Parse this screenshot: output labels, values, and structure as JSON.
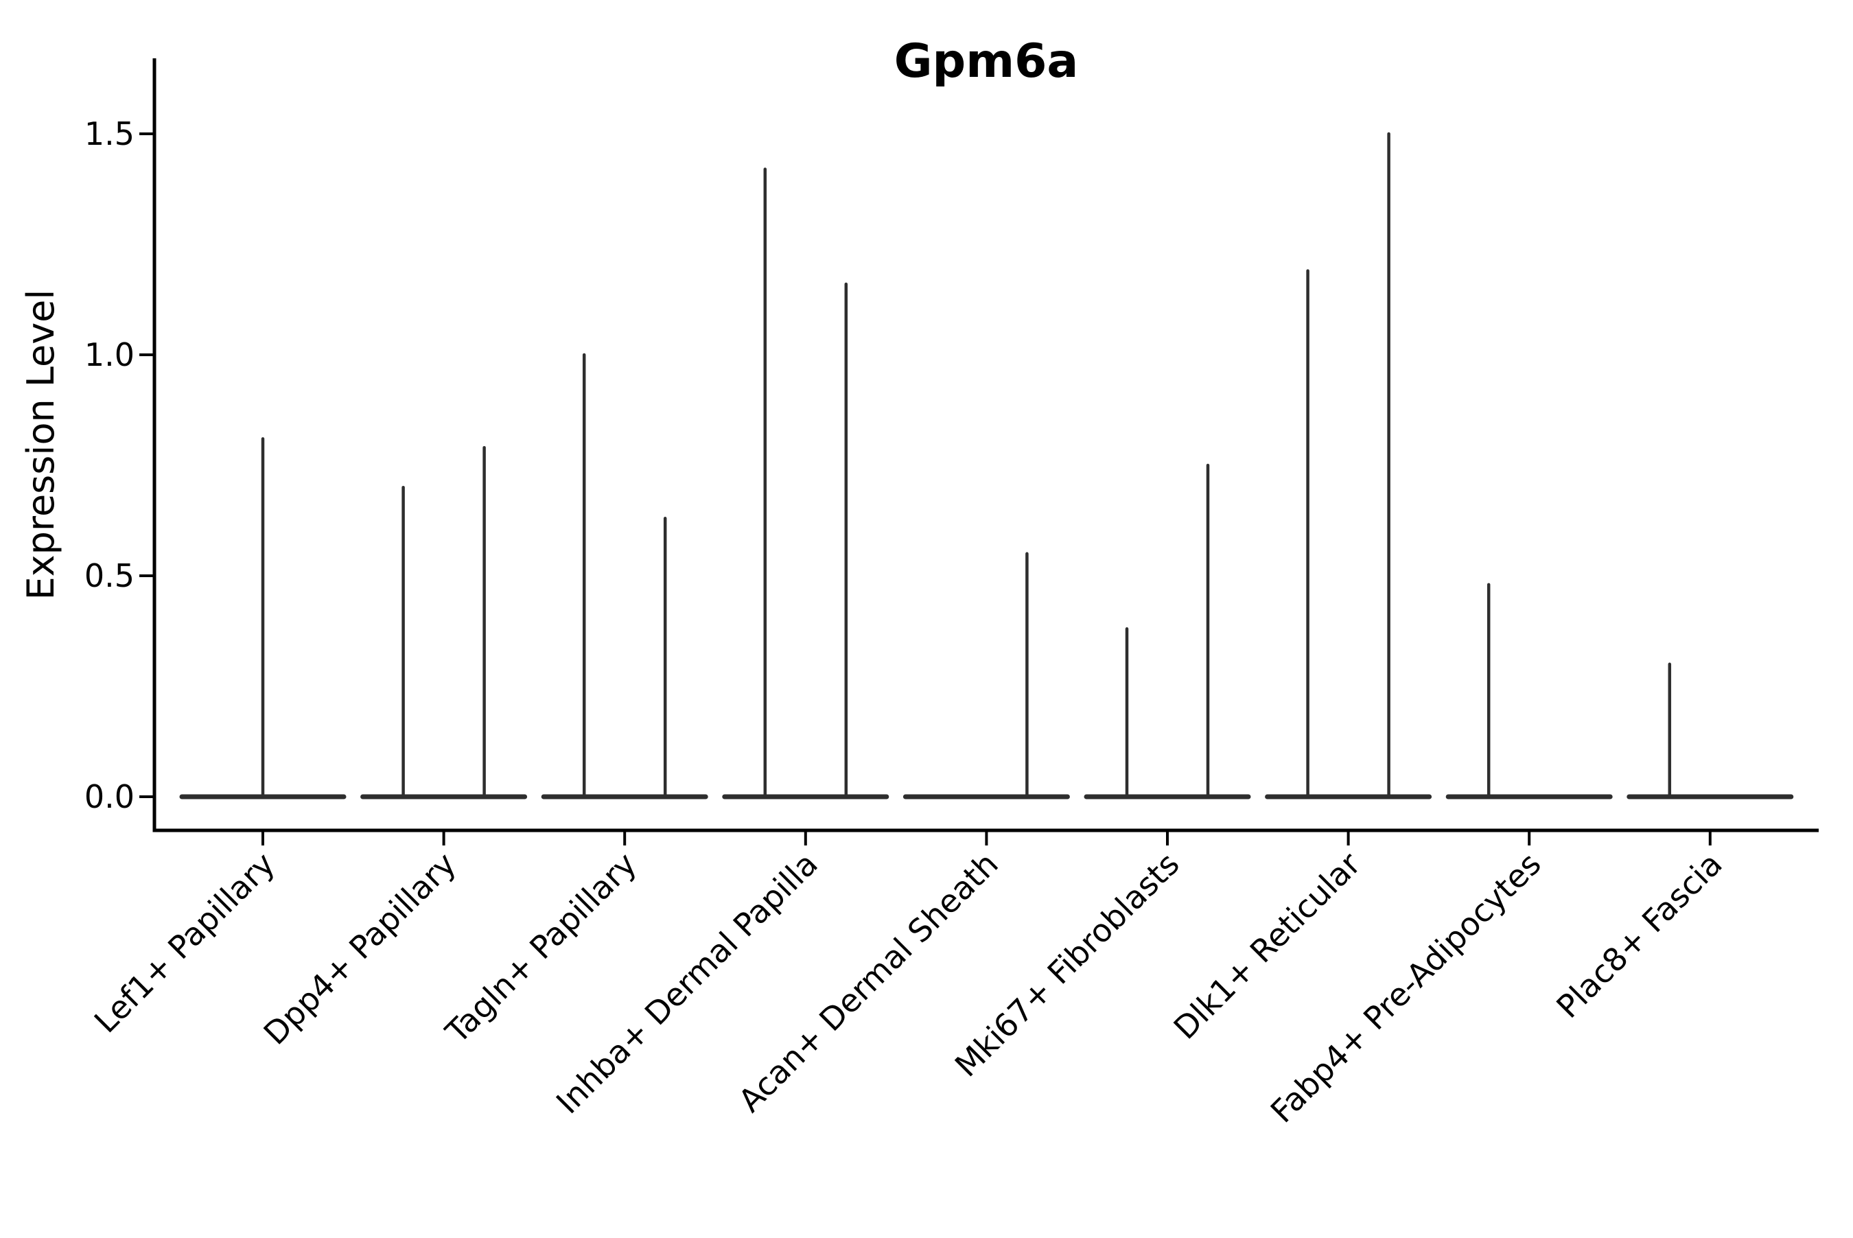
{
  "chart_data": {
    "type": "violin",
    "title": "Gpm6a",
    "xlabel": "",
    "ylabel": "Expression Level",
    "ylim": [
      -0.08,
      1.67
    ],
    "grid": false,
    "legend_position": "none",
    "yticks": [
      {
        "value": 0.0,
        "label": "0.0"
      },
      {
        "value": 0.5,
        "label": "0.5"
      },
      {
        "value": 1.0,
        "label": "1.0"
      },
      {
        "value": 1.5,
        "label": "1.5"
      }
    ],
    "categories": [
      "Lef1+ Papillary",
      "Dpp4+ Papillary",
      "Tagln+ Papillary",
      "Inhba+ Dermal Papilla",
      "Acan+ Dermal Sheath",
      "Mki67+ Fibroblasts",
      "Dlk1+ Reticular",
      "Fabp4+ Pre-Adipocytes",
      "Plac8+ Fascia"
    ],
    "violins": [
      {
        "category": "Lef1+ Papillary",
        "baseline_value": 0,
        "spikes": [
          {
            "position": "center",
            "peak": 0.81
          }
        ]
      },
      {
        "category": "Dpp4+ Papillary",
        "baseline_value": 0,
        "spikes": [
          {
            "position": "left",
            "peak": 0.7
          },
          {
            "position": "right",
            "peak": 0.79
          }
        ]
      },
      {
        "category": "Tagln+ Papillary",
        "baseline_value": 0,
        "spikes": [
          {
            "position": "left",
            "peak": 1.0
          },
          {
            "position": "right",
            "peak": 0.63
          }
        ]
      },
      {
        "category": "Inhba+ Dermal Papilla",
        "baseline_value": 0,
        "spikes": [
          {
            "position": "left",
            "peak": 1.42
          },
          {
            "position": "right",
            "peak": 1.16
          }
        ]
      },
      {
        "category": "Acan+ Dermal Sheath",
        "baseline_value": 0,
        "spikes": [
          {
            "position": "right",
            "peak": 0.55
          }
        ]
      },
      {
        "category": "Mki67+ Fibroblasts",
        "baseline_value": 0,
        "spikes": [
          {
            "position": "left",
            "peak": 0.38
          },
          {
            "position": "right",
            "peak": 0.75
          }
        ]
      },
      {
        "category": "Dlk1+ Reticular",
        "baseline_value": 0,
        "spikes": [
          {
            "position": "left",
            "peak": 1.19
          },
          {
            "position": "right",
            "peak": 1.5
          }
        ]
      },
      {
        "category": "Fabp4+ Pre-Adipocytes",
        "baseline_value": 0,
        "spikes": [
          {
            "position": "left",
            "peak": 0.48
          }
        ]
      },
      {
        "category": "Plac8+ Fascia",
        "baseline_value": 0,
        "spikes": [
          {
            "position": "left",
            "peak": 0.3
          }
        ]
      }
    ]
  },
  "colors": {
    "background": "#ffffff",
    "axis": "#000000",
    "text": "#000000",
    "violin_line": "#2e2e2e"
  }
}
